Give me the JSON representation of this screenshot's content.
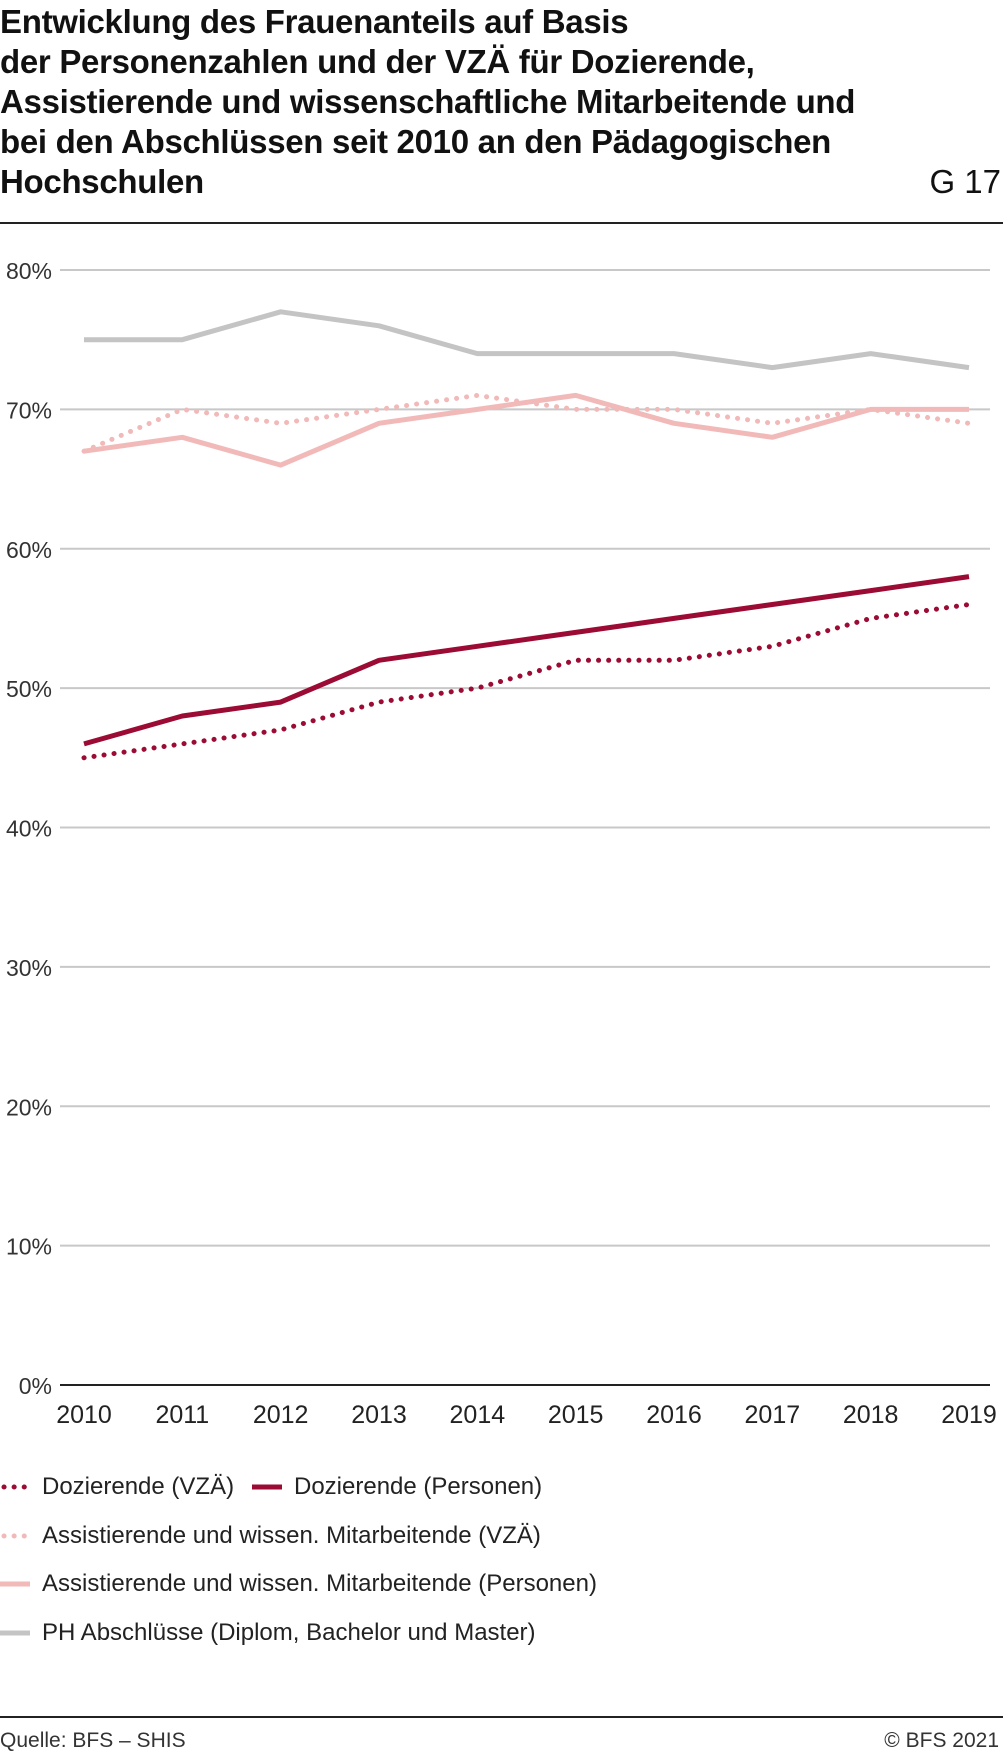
{
  "title": "Entwicklung des Frauenanteils auf Basis\nder Personenzahlen und der VZÄ für Dozierende,\nAssistierende und wissenschaftliche Mitarbeitende und\nbei den Abschlüssen seit 2010 an den Pädagogischen\nHochschulen",
  "graphic_number": "G 17",
  "source": "Quelle: BFS – SHIS",
  "copyright": "© BFS 2021",
  "chart_data": {
    "type": "line",
    "x": [
      "2010",
      "2011",
      "2012",
      "2013",
      "2014",
      "2015",
      "2016",
      "2017",
      "2018",
      "2019"
    ],
    "ylim": [
      0,
      80
    ],
    "yticks": [
      0,
      10,
      20,
      30,
      40,
      50,
      60,
      70,
      80
    ],
    "ytick_labels": [
      "0%",
      "10%",
      "20%",
      "30%",
      "40%",
      "50%",
      "60%",
      "70%",
      "80%"
    ],
    "grid": true,
    "legend_position": "bottom",
    "series": [
      {
        "name": "Dozierende (VZÄ)",
        "color": "#9b0b33",
        "style": "dotted",
        "values": [
          45,
          46,
          47,
          49,
          50,
          52,
          52,
          53,
          55,
          56
        ]
      },
      {
        "name": "Dozierende (Personen)",
        "color": "#9b0b33",
        "style": "solid",
        "values": [
          46,
          48,
          49,
          52,
          53,
          54,
          55,
          56,
          57,
          58
        ]
      },
      {
        "name": "Assistierende und wissen. Mitarbeitende (VZÄ)",
        "color": "#f2b9b9",
        "style": "dotted",
        "values": [
          67,
          70,
          69,
          70,
          71,
          70,
          70,
          69,
          70,
          69
        ]
      },
      {
        "name": "Assistierende und wissen. Mitarbeitende (Personen)",
        "color": "#f2b9b9",
        "style": "solid",
        "values": [
          67,
          68,
          66,
          69,
          70,
          71,
          69,
          68,
          70,
          70
        ]
      },
      {
        "name": "PH Abschlüsse (Diplom, Bachelor und Master)",
        "color": "#c4c4c4",
        "style": "solid",
        "values": [
          75,
          75,
          77,
          76,
          74,
          74,
          74,
          73,
          74,
          73
        ]
      }
    ]
  }
}
